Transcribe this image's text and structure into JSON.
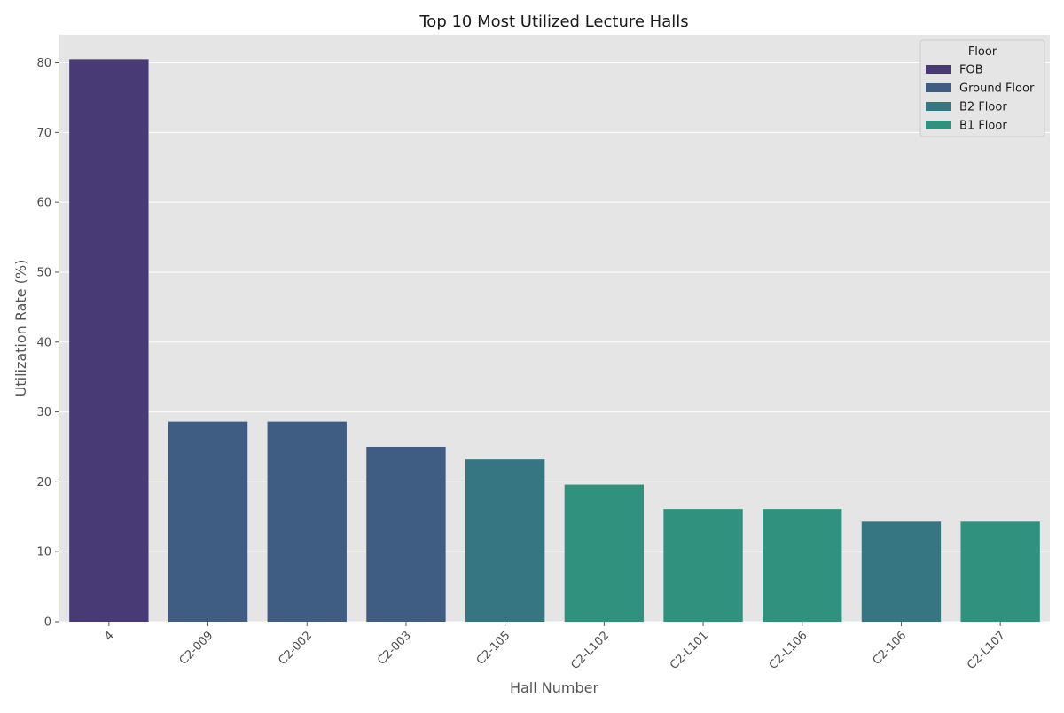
{
  "chart_data": {
    "type": "bar",
    "title": "Top 10 Most Utilized Lecture Halls",
    "xlabel": "Hall Number",
    "ylabel": "Utilization Rate (%)",
    "ylim": [
      0,
      84
    ],
    "yticks": [
      0,
      10,
      20,
      30,
      40,
      50,
      60,
      70,
      80
    ],
    "grid": true,
    "legend_position": "top-right",
    "categories": [
      "4",
      "C2-009",
      "C2-002",
      "C2-003",
      "C2-105",
      "C2-L102",
      "C2-L101",
      "C2-L106",
      "C2-106",
      "C2-L107"
    ],
    "values": [
      80.4,
      28.6,
      28.6,
      25.0,
      23.2,
      19.6,
      16.1,
      16.1,
      14.3,
      14.3
    ],
    "floor": [
      "FOB",
      "Ground Floor",
      "Ground Floor",
      "Ground Floor",
      "B2 Floor",
      "B1 Floor",
      "B1 Floor",
      "B1 Floor",
      "B2 Floor",
      "B1 Floor"
    ],
    "legend": {
      "title": "Floor",
      "entries": [
        "FOB",
        "Ground Floor",
        "B2 Floor",
        "B1 Floor"
      ]
    },
    "colors": {
      "FOB": "#483a74",
      "Ground Floor": "#3f5c82",
      "B2 Floor": "#357682",
      "B1 Floor": "#30927e",
      "plot_background": "#e5e5e5",
      "grid": "#ffffff"
    }
  }
}
